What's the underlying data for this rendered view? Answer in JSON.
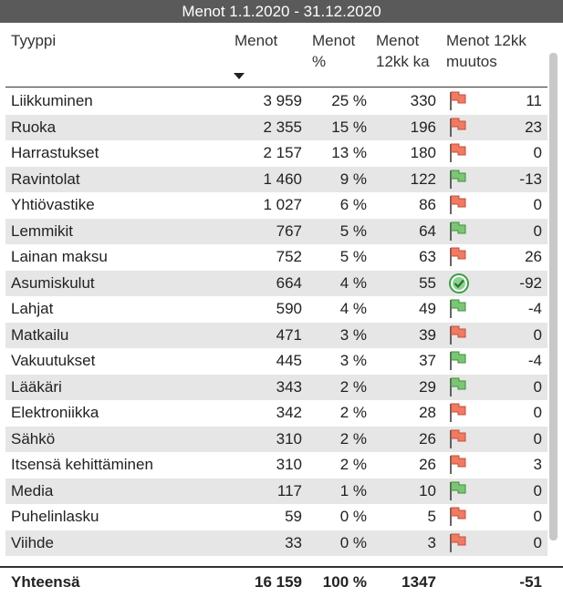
{
  "header": {
    "title": "Menot 1.1.2020 - 31.12.2020"
  },
  "table": {
    "columns": [
      "Tyyppi",
      "Menot",
      "Menot %",
      "Menot 12kk ka",
      "Menot 12kk muutos"
    ],
    "rows": [
      [
        "Liikkuminen",
        "3 959",
        "25 %",
        "330",
        "11"
      ],
      [
        "Ruoka",
        "2 355",
        "15 %",
        "196",
        "23"
      ],
      [
        "Harrastukset",
        "2 157",
        "13 %",
        "180",
        "0"
      ],
      [
        "Ravintolat",
        "1 460",
        "9 %",
        "122",
        "-13"
      ],
      [
        "Yhtiövastike",
        "1 027",
        "6 %",
        "86",
        "0"
      ],
      [
        "Lemmikit",
        "767",
        "5 %",
        "64",
        "0"
      ],
      [
        "Lainan maksu",
        "752",
        "5 %",
        "63",
        "26"
      ],
      [
        "Asumiskulut",
        "664",
        "4 %",
        "55",
        "-92"
      ],
      [
        "Lahjat",
        "590",
        "4 %",
        "49",
        "-4"
      ],
      [
        "Matkailu",
        "471",
        "3 %",
        "39",
        "0"
      ],
      [
        "Vakuutukset",
        "445",
        "3 %",
        "37",
        "-4"
      ],
      [
        "Lääkäri",
        "343",
        "2 %",
        "29",
        "0"
      ],
      [
        "Elektroniikka",
        "342",
        "2 %",
        "28",
        "0"
      ],
      [
        "Sähkö",
        "310",
        "2 %",
        "26",
        "0"
      ],
      [
        "Itsensä kehittäminen",
        "310",
        "2 %",
        "26",
        "3"
      ],
      [
        "Media",
        "117",
        "1 %",
        "10",
        "0"
      ],
      [
        "Puhelinlasku",
        "59",
        "0 %",
        "5",
        "0"
      ],
      [
        "Viihde",
        "33",
        "0 %",
        "3",
        "0"
      ]
    ],
    "icons": [
      "red",
      "red",
      "red",
      "green",
      "red",
      "green",
      "red",
      "check",
      "green",
      "red",
      "green",
      "green",
      "red",
      "red",
      "red",
      "green",
      "red",
      "red"
    ],
    "total": [
      "Yhteensä",
      "16 159",
      "100 %",
      "1347",
      "-51"
    ]
  }
}
